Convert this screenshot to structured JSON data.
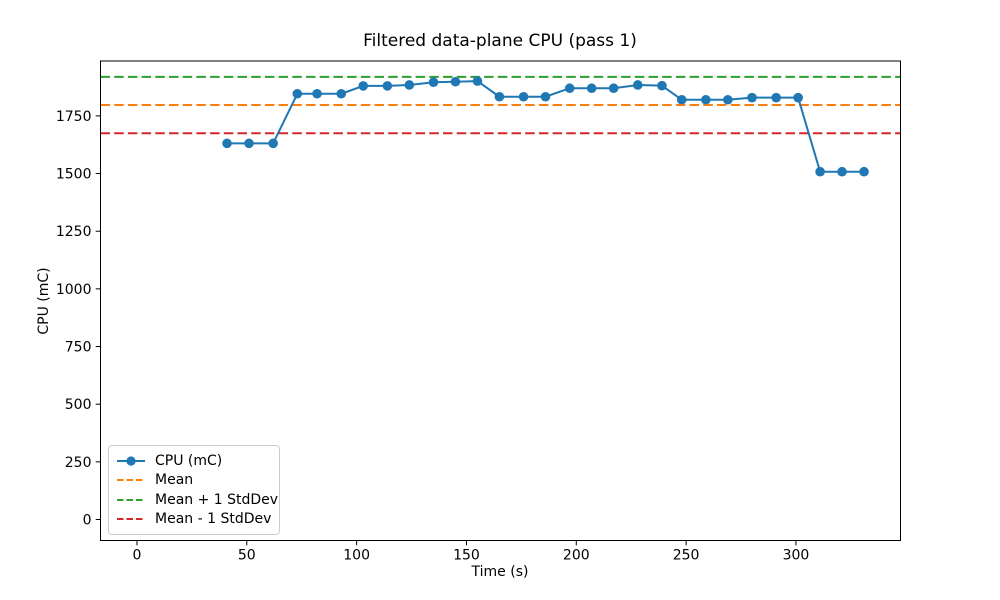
{
  "chart_data": {
    "type": "line",
    "title": "Filtered data-plane CPU (pass 1)",
    "xlabel": "Time (s)",
    "ylabel": "CPU (mC)",
    "xlim": [
      -16.6,
      347.6
    ],
    "ylim": [
      -91,
      1988
    ],
    "x_ticks": [
      0,
      50,
      100,
      150,
      200,
      250,
      300
    ],
    "y_ticks": [
      0,
      250,
      500,
      750,
      1000,
      1250,
      1500,
      1750
    ],
    "grid": false,
    "legend_position": "lower left",
    "series": [
      {
        "name": "CPU (mC)",
        "type": "line+markers",
        "color": "#1f77b4",
        "x": [
          41,
          51,
          62,
          73,
          82,
          93,
          103,
          114,
          124,
          135,
          145,
          155,
          165,
          176,
          186,
          197,
          207,
          217,
          228,
          239,
          248,
          259,
          269,
          280,
          291,
          301,
          311,
          321,
          331
        ],
        "y": [
          1631,
          1631,
          1631,
          1846,
          1846,
          1846,
          1880,
          1880,
          1884,
          1896,
          1898,
          1901,
          1833,
          1833,
          1833,
          1870,
          1870,
          1870,
          1884,
          1881,
          1820,
          1820,
          1820,
          1829,
          1829,
          1829,
          1508,
          1508,
          1508
        ]
      },
      {
        "name": "Mean",
        "type": "hline-dashed",
        "color": "#ff7f0e",
        "value": 1797
      },
      {
        "name": "Mean + 1 StdDev",
        "type": "hline-dashed",
        "color": "#2ca02c",
        "value": 1919
      },
      {
        "name": "Mean - 1 StdDev",
        "type": "hline-dashed",
        "color": "#d62728",
        "value": 1675
      }
    ]
  }
}
